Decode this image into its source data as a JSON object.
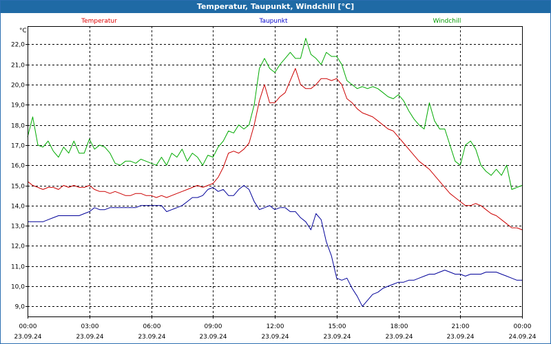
{
  "window": {
    "title": "Temperatur, Taupunkt, Windchill [°C]"
  },
  "chart_data": {
    "type": "line",
    "title": "Temperatur, Taupunkt, Windchill [°C]",
    "ylabel": "°C",
    "xlabel": "",
    "ylim": [
      8.5,
      22.9
    ],
    "yticks": [
      "9,0",
      "10,0",
      "11,0",
      "12,0",
      "13,0",
      "14,0",
      "15,0",
      "16,0",
      "17,0",
      "18,0",
      "19,0",
      "20,0",
      "21,0",
      "22,0"
    ],
    "xticks": [
      {
        "time": "00:00",
        "date": "23.09.24"
      },
      {
        "time": "03:00",
        "date": "23.09.24"
      },
      {
        "time": "06:00",
        "date": "23.09.24"
      },
      {
        "time": "09:00",
        "date": "23.09.24"
      },
      {
        "time": "12:00",
        "date": "23.09.24"
      },
      {
        "time": "15:00",
        "date": "23.09.24"
      },
      {
        "time": "18:00",
        "date": "23.09.24"
      },
      {
        "time": "21:00",
        "date": "23.09.24"
      },
      {
        "time": "00:00",
        "date": "24.09.24"
      }
    ],
    "x_hours": [
      0,
      0.25,
      0.5,
      0.75,
      1,
      1.25,
      1.5,
      1.75,
      2,
      2.25,
      2.5,
      2.75,
      3,
      3.25,
      3.5,
      3.75,
      4,
      4.25,
      4.5,
      4.75,
      5,
      5.25,
      5.5,
      5.75,
      6,
      6.25,
      6.5,
      6.75,
      7,
      7.25,
      7.5,
      7.75,
      8,
      8.25,
      8.5,
      8.75,
      9,
      9.25,
      9.5,
      9.75,
      10,
      10.25,
      10.5,
      10.75,
      11,
      11.25,
      11.5,
      11.75,
      12,
      12.25,
      12.5,
      12.75,
      13,
      13.25,
      13.5,
      13.75,
      14,
      14.25,
      14.5,
      14.75,
      15,
      15.25,
      15.5,
      15.75,
      16,
      16.25,
      16.5,
      16.75,
      17,
      17.25,
      17.5,
      17.75,
      18,
      18.25,
      18.5,
      18.75,
      19,
      19.25,
      19.5,
      19.75,
      20,
      20.25,
      20.5,
      20.75,
      21,
      21.25,
      21.5,
      21.75,
      22,
      22.25,
      22.5,
      22.75,
      23,
      23.25,
      23.5,
      23.75,
      24
    ],
    "series": [
      {
        "name": "Temperatur",
        "color": "#dd0000",
        "values": [
          15.2,
          15.0,
          14.9,
          14.8,
          14.9,
          14.9,
          14.8,
          15.0,
          14.9,
          15.0,
          14.9,
          14.9,
          15.0,
          14.8,
          14.7,
          14.7,
          14.6,
          14.7,
          14.6,
          14.5,
          14.5,
          14.6,
          14.6,
          14.5,
          14.5,
          14.4,
          14.5,
          14.4,
          14.5,
          14.6,
          14.7,
          14.8,
          14.9,
          15.0,
          14.9,
          15.0,
          15.1,
          15.4,
          15.9,
          16.6,
          16.7,
          16.6,
          16.8,
          17.1,
          18.0,
          19.2,
          20.0,
          19.1,
          19.1,
          19.4,
          19.6,
          20.2,
          20.8,
          20.0,
          19.8,
          19.8,
          20.0,
          20.3,
          20.3,
          20.2,
          20.3,
          20.0,
          19.3,
          19.1,
          18.8,
          18.6,
          18.5,
          18.4,
          18.2,
          18.0,
          17.8,
          17.7,
          17.4,
          17.1,
          16.8,
          16.5,
          16.2,
          16.0,
          15.8,
          15.5,
          15.2,
          14.9,
          14.6,
          14.4,
          14.2,
          14.0,
          14.0,
          14.1,
          14.0,
          13.8,
          13.6,
          13.5,
          13.3,
          13.1,
          12.9,
          12.9,
          12.8
        ],
        "stroke_color": "#cc0000"
      },
      {
        "name": "Taupunkt",
        "color": "#0000cc",
        "values": [
          13.2,
          13.2,
          13.2,
          13.2,
          13.3,
          13.4,
          13.5,
          13.5,
          13.5,
          13.5,
          13.5,
          13.6,
          13.7,
          13.9,
          13.8,
          13.8,
          13.9,
          13.9,
          13.9,
          13.9,
          13.9,
          13.9,
          14.0,
          14.0,
          14.0,
          14.0,
          14.0,
          13.7,
          13.8,
          13.9,
          14.0,
          14.2,
          14.4,
          14.4,
          14.5,
          14.8,
          14.9,
          14.7,
          14.8,
          14.5,
          14.5,
          14.8,
          15.0,
          14.8,
          14.2,
          13.8,
          13.9,
          14.0,
          13.8,
          13.9,
          13.9,
          13.7,
          13.7,
          13.4,
          13.2,
          12.8,
          13.6,
          13.3,
          12.2,
          11.5,
          10.4,
          10.3,
          10.4,
          9.9,
          9.5,
          9.0,
          9.3,
          9.6,
          9.7,
          9.9,
          10.0,
          10.1,
          10.2,
          10.2,
          10.3,
          10.3,
          10.4,
          10.5,
          10.6,
          10.6,
          10.7,
          10.8,
          10.7,
          10.6,
          10.6,
          10.5,
          10.6,
          10.6,
          10.6,
          10.7,
          10.7,
          10.7,
          10.6,
          10.5,
          10.4,
          10.3,
          10.3
        ],
        "stroke_color": "#000099"
      },
      {
        "name": "Windchill",
        "color": "#009900",
        "values": [
          17.4,
          18.4,
          17.0,
          16.9,
          17.2,
          16.7,
          16.4,
          16.9,
          16.6,
          17.2,
          16.6,
          16.6,
          17.3,
          16.8,
          17.0,
          16.9,
          16.6,
          16.1,
          16.0,
          16.2,
          16.2,
          16.1,
          16.3,
          16.2,
          16.1,
          16.0,
          16.4,
          16.0,
          16.6,
          16.4,
          16.8,
          16.2,
          16.6,
          16.4,
          16.0,
          16.5,
          16.4,
          16.9,
          17.2,
          17.7,
          17.6,
          18.0,
          17.8,
          18.0,
          19.0,
          20.8,
          21.3,
          20.8,
          20.6,
          21.0,
          21.3,
          21.6,
          21.3,
          21.3,
          22.3,
          21.5,
          21.3,
          21.0,
          21.6,
          21.4,
          21.4,
          21.0,
          20.2,
          20.0,
          19.8,
          19.9,
          19.8,
          19.9,
          19.8,
          19.6,
          19.4,
          19.3,
          19.5,
          19.2,
          18.7,
          18.3,
          18.0,
          17.8,
          19.1,
          18.2,
          17.8,
          17.8,
          17.0,
          16.2,
          16.0,
          17.0,
          17.2,
          16.8,
          16.0,
          15.7,
          15.5,
          15.8,
          15.5,
          16.0,
          14.8,
          14.9,
          15.0
        ],
        "stroke_color": "#00aa00"
      }
    ],
    "grid": true,
    "legend": "top, inline above plot"
  }
}
